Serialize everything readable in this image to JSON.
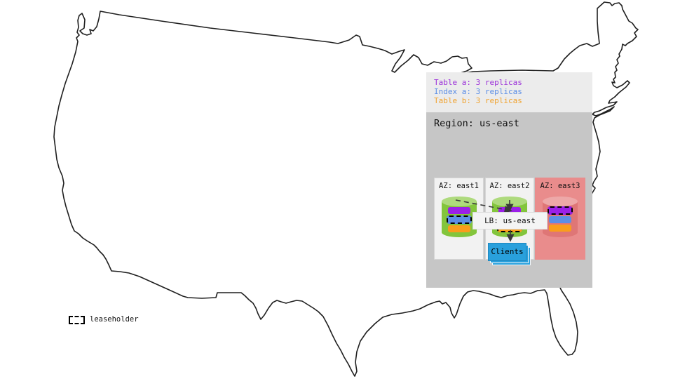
{
  "panel": {
    "legend": {
      "items": [
        {
          "label": "Table a: 3 replicas",
          "color": "#9b30d9"
        },
        {
          "label": "Index a: 3 replicas",
          "color": "#5b8ee6"
        },
        {
          "label": "Table b: 3 replicas",
          "color": "#f0a330"
        }
      ]
    },
    "region": {
      "title": "Region: us-east",
      "azs": [
        {
          "label": "AZ: east1",
          "variant": "green",
          "replicas": [
            {
              "name": "table-a-replica",
              "color": "#9b1fe8",
              "leaseholder": false
            },
            {
              "name": "index-a-replica",
              "color": "#5b8ee6",
              "leaseholder": true
            },
            {
              "name": "table-b-replica",
              "color": "#f99d1c",
              "leaseholder": false
            }
          ]
        },
        {
          "label": "AZ: east2",
          "variant": "green",
          "replicas": [
            {
              "name": "table-a-replica",
              "color": "#9b1fe8",
              "leaseholder": false
            },
            {
              "name": "index-a-replica",
              "color": "#5b8ee6",
              "leaseholder": false
            },
            {
              "name": "table-b-replica",
              "color": "#f99d1c",
              "leaseholder": true
            }
          ]
        },
        {
          "label": "AZ: east3",
          "variant": "red",
          "replicas": [
            {
              "name": "table-a-replica",
              "color": "#9b1fe8",
              "leaseholder": true
            },
            {
              "name": "index-a-replica",
              "color": "#5b8ee6",
              "leaseholder": false
            },
            {
              "name": "table-b-replica",
              "color": "#f99d1c",
              "leaseholder": false
            }
          ]
        }
      ],
      "lb_label": "LB: us-east",
      "clients_label": "Clients"
    }
  },
  "map_legend": {
    "label": "leaseholder"
  },
  "colors": {
    "cylinder_green": "#83c53c",
    "cylinder_green_top": "#aeda7d",
    "cylinder_red": "#df7676",
    "cylinder_red_top": "#eda8a8",
    "az_red_bg": "#e98c8c",
    "az_bg": "#f2f2f2",
    "legend_bg": "#ececec",
    "region_bg": "#c6c6c6",
    "clients_blue": "#29a0dc",
    "map_outline": "#1f1f1f"
  }
}
